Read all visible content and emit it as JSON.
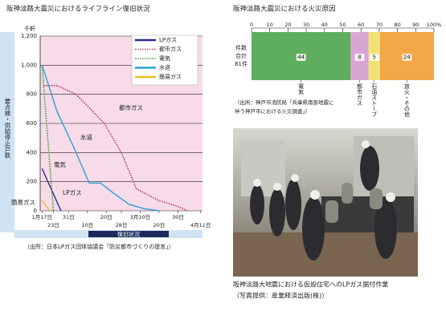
{
  "chart_data": [
    {
      "type": "line",
      "title": "阪神淡路大震災におけるライフライン復旧状況",
      "y_unit": "千軒",
      "ylabel": "要点検・供給停止戸数",
      "xlabel": "復旧状況",
      "xlim": [
        -1,
        85
      ],
      "xticks": [
        {
          "value": 0,
          "label": "1月17日"
        },
        {
          "value": 6,
          "label": "23日"
        },
        {
          "value": 14,
          "label": "31日"
        },
        {
          "value": 24,
          "label": "10日"
        },
        {
          "value": 34,
          "label": "20日"
        },
        {
          "value": 42,
          "label": "28日"
        },
        {
          "value": 52,
          "label": "3月10日"
        },
        {
          "value": 62,
          "label": "20日"
        },
        {
          "value": 72,
          "label": "30日"
        },
        {
          "value": 84,
          "label": "4月11日"
        }
      ],
      "ylim": [
        0,
        1200
      ],
      "yticks": [
        0,
        200,
        400,
        600,
        800,
        {
          "value": 1000,
          "label": "1,000"
        },
        {
          "value": 1200,
          "label": "1,200"
        }
      ],
      "grid": true,
      "legend": "top-right",
      "series": [
        {
          "name": "LPガス",
          "color": "#2b2b8c",
          "style": "solid",
          "x": [
            0,
            10
          ],
          "values": [
            290,
            0
          ]
        },
        {
          "name": "都市ガス",
          "color": "#c0306a",
          "style": "dotted",
          "x": [
            1,
            8,
            18,
            24,
            33,
            42,
            50,
            62,
            72,
            77
          ],
          "values": [
            860,
            860,
            800,
            720,
            600,
            400,
            150,
            70,
            30,
            0
          ]
        },
        {
          "name": "電気",
          "color": "#3a9a3a",
          "style": "dotted",
          "x": [
            0,
            6
          ],
          "values": [
            1000,
            0
          ]
        },
        {
          "name": "水道",
          "color": "#2aa0d8",
          "style": "solid",
          "x": [
            0,
            8,
            17,
            25,
            31,
            37,
            46,
            54,
            62
          ],
          "values": [
            1000,
            680,
            430,
            190,
            190,
            130,
            45,
            15,
            0
          ]
        },
        {
          "name": "簡易ガス",
          "color": "#e8c020",
          "style": "solid",
          "x": [
            0,
            4
          ],
          "values": [
            70,
            0
          ]
        }
      ],
      "annotations": [
        "都市ガス",
        "水道",
        "電気",
        "LPガス",
        "簡易ガス"
      ],
      "source": "（出所：日本LPガス団体協議会「防災都市づくりの提言」）"
    },
    {
      "type": "stacked-bar",
      "title": "阪神淡路大震災における火災原因",
      "categories": [
        "件数合計81件"
      ],
      "xlim": [
        0,
        81
      ],
      "xticks": [
        {
          "value": 0,
          "label": "0"
        },
        {
          "value": 8.1,
          "label": "10"
        },
        {
          "value": 16.2,
          "label": "20"
        },
        {
          "value": 24.3,
          "label": "30"
        },
        {
          "value": 32.4,
          "label": "40"
        },
        {
          "value": 40.5,
          "label": "50"
        },
        {
          "value": 48.6,
          "label": "60"
        },
        {
          "value": 56.7,
          "label": "70"
        },
        {
          "value": 64.8,
          "label": "80"
        },
        {
          "value": 72.9,
          "label": "90"
        },
        {
          "value": 81,
          "label": "100%"
        }
      ],
      "series": [
        {
          "name": "電気",
          "color": "#5fae5f",
          "values": [
            44
          ]
        },
        {
          "name": "都市ガス",
          "color": "#d9a6d3",
          "values": [
            8
          ]
        },
        {
          "name": "石油ストーブ",
          "color": "#f2e276",
          "values": [
            5
          ]
        },
        {
          "name": "放火・その他",
          "color": "#f2a848",
          "values": [
            24
          ]
        }
      ],
      "source": [
        "（出所：神戸市消防局「兵庫県南部地震に",
        "伴う神戸市における火災調査」）"
      ]
    }
  ],
  "photo": {
    "caption": "阪神淡路大地震における仮設住宅へのLPガス据付作業",
    "credit": "（写真提供：産業経済出版(株)）"
  }
}
